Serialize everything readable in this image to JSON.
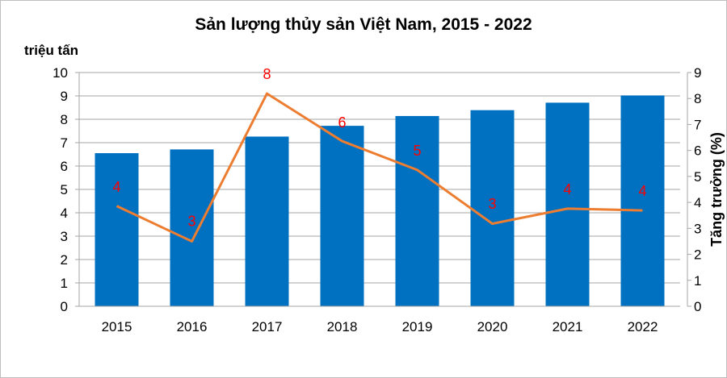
{
  "chart_data": {
    "type": "bar+line",
    "title": "Sản lượng thủy sản Việt Nam, 2015 - 2022",
    "ylabel_left": "triệu tấn",
    "ylabel_right": "Tăng trưởng (%)",
    "categories": [
      "2015",
      "2016",
      "2017",
      "2018",
      "2019",
      "2020",
      "2021",
      "2022"
    ],
    "ylim_left": [
      0,
      10
    ],
    "yticks_left": [
      "0",
      "1",
      "2",
      "3",
      "4",
      "5",
      "6",
      "7",
      "8",
      "9",
      "10"
    ],
    "ylim_right": [
      0,
      9
    ],
    "yticks_right": [
      "0",
      "1",
      "2",
      "3",
      "4",
      "5",
      "6",
      "7",
      "8",
      "9"
    ],
    "grid": true,
    "series": [
      {
        "type": "bar",
        "axis": "left",
        "color": "#0070c0",
        "values": [
          6.55,
          6.71,
          7.26,
          7.72,
          8.14,
          8.39,
          8.71,
          9.02
        ]
      },
      {
        "type": "line",
        "axis": "right",
        "color": "#ed7d31",
        "values": [
          3.86,
          2.5,
          8.19,
          6.36,
          5.25,
          3.18,
          3.76,
          3.69
        ],
        "data_labels": [
          "4",
          "3",
          "8",
          "6",
          "5",
          "3",
          "4",
          "4"
        ],
        "label_color": "#ff0000"
      }
    ]
  }
}
